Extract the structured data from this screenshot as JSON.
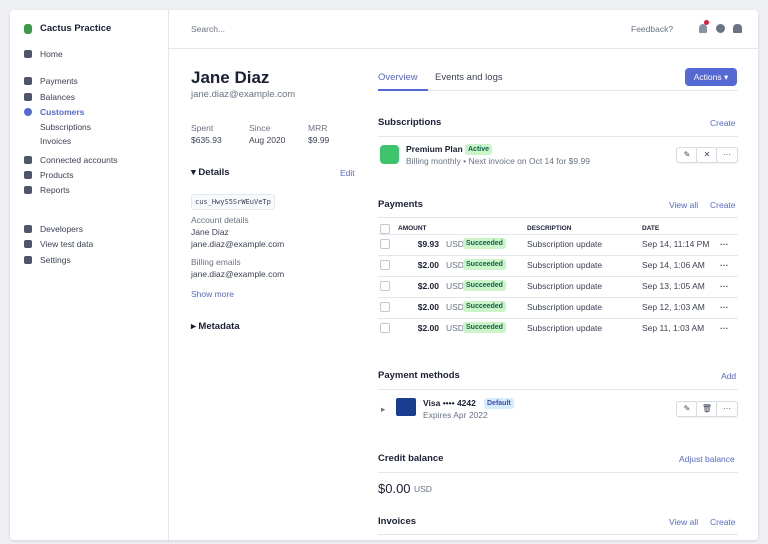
{
  "sidebar": {
    "account": "Cactus Practice",
    "nav": [
      "Home",
      "Payments",
      "Balances",
      "Customers",
      "Subscriptions",
      "Invoices",
      "Connected accounts",
      "Products",
      "Reports",
      "Developers",
      "View test data",
      "Settings"
    ]
  },
  "topbar": {
    "search": "Search...",
    "feedback": "Feedback?"
  },
  "customer": {
    "name": "Jane Diaz",
    "email": "jane.diaz@example.com",
    "stats": [
      {
        "label": "Spent",
        "value": "$635.93"
      },
      {
        "label": "Since",
        "value": "Aug 2020"
      },
      {
        "label": "MRR",
        "value": "$9.99"
      }
    ],
    "details": {
      "title": "Details",
      "edit": "Edit",
      "id": "cus_HwyS5SrWEuVeTp",
      "account_label": "Account details",
      "account_name": "Jane Diaz",
      "account_email": "jane.diaz@example.com",
      "billing_label": "Billing emails",
      "billing_email": "jane.diaz@example.com",
      "show_more": "Show more"
    },
    "metadata": "Metadata"
  },
  "tabs": [
    "Overview",
    "Events and logs"
  ],
  "actions": "Actions",
  "subscriptions": {
    "title": "Subscriptions",
    "create": "Create",
    "plan": "Premium Plan",
    "status": "Active",
    "billing": "Billing monthly • Next invoice on Oct 14 for $9.99"
  },
  "payments": {
    "title": "Payments",
    "view_all": "View all",
    "create": "Create",
    "headers": [
      "AMOUNT",
      "DESCRIPTION",
      "DATE"
    ],
    "rows": [
      {
        "amount": "$9.93",
        "currency": "USD",
        "status": "Succeeded",
        "description": "Subscription update",
        "date": "Sep 14, 11:14 PM"
      },
      {
        "amount": "$2.00",
        "currency": "USD",
        "status": "Succeeded",
        "description": "Subscription update",
        "date": "Sep 14, 1:06 AM"
      },
      {
        "amount": "$2.00",
        "currency": "USD",
        "status": "Succeeded",
        "description": "Subscription update",
        "date": "Sep 13, 1:05 AM"
      },
      {
        "amount": "$2.00",
        "currency": "USD",
        "status": "Succeeded",
        "description": "Subscription update",
        "date": "Sep 12, 1:03 AM"
      },
      {
        "amount": "$2.00",
        "currency": "USD",
        "status": "Succeeded",
        "description": "Subscription update",
        "date": "Sep 11, 1:03 AM"
      }
    ]
  },
  "payment_methods": {
    "title": "Payment methods",
    "add": "Add",
    "card": "Visa •••• 4242",
    "badge": "Default",
    "expires": "Expires Apr 2022"
  },
  "credit_balance": {
    "title": "Credit balance",
    "adjust": "Adjust balance",
    "amount": "$0.00",
    "currency": "USD"
  },
  "invoices": {
    "title": "Invoices",
    "view_all": "View all",
    "create": "Create"
  }
}
